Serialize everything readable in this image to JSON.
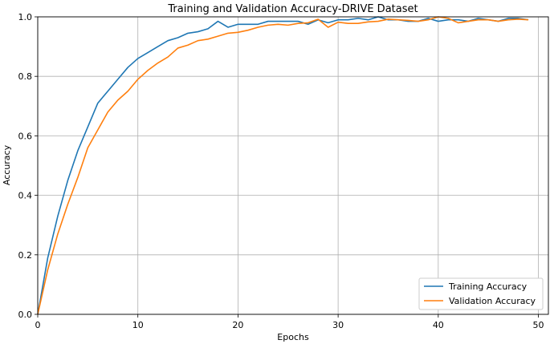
{
  "chart_data": {
    "type": "line",
    "title": "Training and Validation Accuracy-DRIVE Dataset",
    "xlabel": "Epochs",
    "ylabel": "Accuracy",
    "xlim": [
      0,
      51
    ],
    "ylim": [
      0,
      1.0
    ],
    "xticks": [
      0,
      10,
      20,
      30,
      40,
      50
    ],
    "yticks": [
      0.0,
      0.2,
      0.4,
      0.6,
      0.8,
      1.0
    ],
    "xtick_labels": [
      "0",
      "10",
      "20",
      "30",
      "40",
      "50"
    ],
    "ytick_labels": [
      "0.0",
      "0.2",
      "0.4",
      "0.6",
      "0.8",
      "1.0"
    ],
    "grid": true,
    "legend_position": "bottom-right",
    "series": [
      {
        "name": "Training Accuracy",
        "color": "#1f77b4",
        "x": [
          0,
          1,
          2,
          3,
          4,
          5,
          6,
          7,
          8,
          9,
          10,
          11,
          12,
          13,
          14,
          15,
          16,
          17,
          18,
          19,
          20,
          21,
          22,
          23,
          24,
          25,
          26,
          27,
          28,
          29,
          30,
          31,
          32,
          33,
          34,
          35,
          36,
          37,
          38,
          39,
          40,
          41,
          42,
          43,
          44,
          45,
          46,
          47,
          48,
          49
        ],
        "values": [
          0.0,
          0.19,
          0.33,
          0.45,
          0.55,
          0.63,
          0.71,
          0.75,
          0.79,
          0.83,
          0.86,
          0.88,
          0.9,
          0.92,
          0.93,
          0.945,
          0.95,
          0.96,
          0.985,
          0.965,
          0.975,
          0.975,
          0.975,
          0.985,
          0.985,
          0.985,
          0.985,
          0.975,
          0.99,
          0.98,
          0.99,
          0.99,
          0.995,
          0.99,
          1.0,
          0.99,
          0.99,
          0.985,
          0.985,
          0.995,
          0.985,
          0.99,
          0.99,
          0.985,
          0.995,
          0.99,
          0.985,
          0.995,
          0.995,
          0.99
        ]
      },
      {
        "name": "Validation Accuracy",
        "color": "#ff7f0e",
        "x": [
          0,
          1,
          2,
          3,
          4,
          5,
          6,
          7,
          8,
          9,
          10,
          11,
          12,
          13,
          14,
          15,
          16,
          17,
          18,
          19,
          20,
          21,
          22,
          23,
          24,
          25,
          26,
          27,
          28,
          29,
          30,
          31,
          32,
          33,
          34,
          35,
          36,
          37,
          38,
          39,
          40,
          41,
          42,
          43,
          44,
          45,
          46,
          47,
          48,
          49
        ],
        "values": [
          0.0,
          0.15,
          0.27,
          0.37,
          0.46,
          0.56,
          0.62,
          0.68,
          0.72,
          0.75,
          0.79,
          0.82,
          0.845,
          0.865,
          0.895,
          0.905,
          0.92,
          0.925,
          0.935,
          0.945,
          0.948,
          0.955,
          0.965,
          0.972,
          0.975,
          0.972,
          0.978,
          0.98,
          0.992,
          0.965,
          0.982,
          0.978,
          0.978,
          0.983,
          0.985,
          0.992,
          0.99,
          0.988,
          0.985,
          0.99,
          1.0,
          0.995,
          0.98,
          0.985,
          0.99,
          0.99,
          0.985,
          0.99,
          0.992,
          0.99
        ]
      }
    ]
  }
}
